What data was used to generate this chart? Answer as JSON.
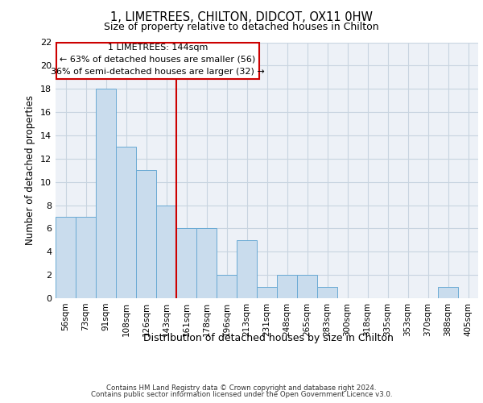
{
  "title1": "1, LIMETREES, CHILTON, DIDCOT, OX11 0HW",
  "title2": "Size of property relative to detached houses in Chilton",
  "xlabel": "Distribution of detached houses by size in Chilton",
  "ylabel": "Number of detached properties",
  "footer1": "Contains HM Land Registry data © Crown copyright and database right 2024.",
  "footer2": "Contains public sector information licensed under the Open Government Licence v3.0.",
  "annotation_line1": "1 LIMETREES: 144sqm",
  "annotation_line2": "← 63% of detached houses are smaller (56)",
  "annotation_line3": "36% of semi-detached houses are larger (32) →",
  "bar_labels": [
    "56sqm",
    "73sqm",
    "91sqm",
    "108sqm",
    "126sqm",
    "143sqm",
    "161sqm",
    "178sqm",
    "196sqm",
    "213sqm",
    "231sqm",
    "248sqm",
    "265sqm",
    "283sqm",
    "300sqm",
    "318sqm",
    "335sqm",
    "353sqm",
    "370sqm",
    "388sqm",
    "405sqm"
  ],
  "bar_values": [
    7,
    7,
    18,
    13,
    11,
    8,
    6,
    6,
    2,
    5,
    1,
    2,
    2,
    1,
    0,
    0,
    0,
    0,
    0,
    1,
    0
  ],
  "bar_color": "#c9dced",
  "bar_edge_color": "#6aaad4",
  "vline_color": "#cc0000",
  "vline_x": 5.5,
  "annotation_box_color": "#cc0000",
  "ylim": [
    0,
    22
  ],
  "yticks": [
    0,
    2,
    4,
    6,
    8,
    10,
    12,
    14,
    16,
    18,
    20,
    22
  ],
  "grid_color": "#c8d4e0",
  "bg_color": "#edf1f7"
}
